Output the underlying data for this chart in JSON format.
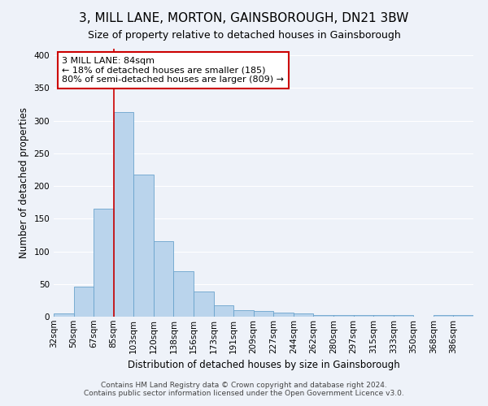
{
  "title": "3, MILL LANE, MORTON, GAINSBOROUGH, DN21 3BW",
  "subtitle": "Size of property relative to detached houses in Gainsborough",
  "xlabel": "Distribution of detached houses by size in Gainsborough",
  "ylabel": "Number of detached properties",
  "footer_line1": "Contains HM Land Registry data © Crown copyright and database right 2024.",
  "footer_line2": "Contains public sector information licensed under the Open Government Licence v3.0.",
  "bin_labels": [
    "32sqm",
    "50sqm",
    "67sqm",
    "85sqm",
    "103sqm",
    "120sqm",
    "138sqm",
    "156sqm",
    "173sqm",
    "191sqm",
    "209sqm",
    "227sqm",
    "244sqm",
    "262sqm",
    "280sqm",
    "297sqm",
    "315sqm",
    "333sqm",
    "350sqm",
    "368sqm",
    "386sqm"
  ],
  "bar_heights": [
    5,
    46,
    165,
    313,
    218,
    116,
    69,
    38,
    18,
    10,
    9,
    6,
    5,
    2,
    2,
    2,
    2,
    2,
    0,
    2,
    2
  ],
  "bar_color": "#bad4ec",
  "bar_edge_color": "#6aa3cc",
  "vline_x_idx": 3,
  "vline_color": "#cc0000",
  "annotation_text": "3 MILL LANE: 84sqm\n← 18% of detached houses are smaller (185)\n80% of semi-detached houses are larger (809) →",
  "annotation_box_color": "#ffffff",
  "annotation_box_edge": "#cc0000",
  "ylim": [
    0,
    410
  ],
  "background_color": "#eef2f9",
  "grid_color": "#ffffff",
  "title_fontsize": 11,
  "subtitle_fontsize": 9,
  "axis_label_fontsize": 8.5,
  "tick_fontsize": 7.5,
  "annotation_fontsize": 8,
  "footer_fontsize": 6.5,
  "bin_width": 1
}
